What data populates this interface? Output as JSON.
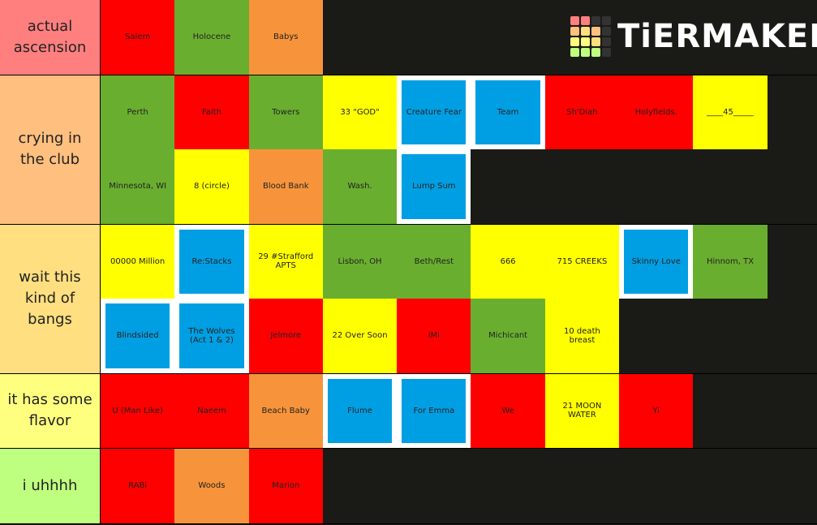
{
  "logo": "TiERMAKER",
  "tiers": [
    {
      "label": "actual ascension",
      "color": "#ff7f7f",
      "items": [
        {
          "text": "Salem",
          "color": "#ff0000"
        },
        {
          "text": "Holocene",
          "color": "#6aae2f"
        },
        {
          "text": "Babys",
          "color": "#f7943b"
        }
      ]
    },
    {
      "label": "crying in the club",
      "color": "#ffbf7f",
      "items": [
        {
          "text": "Perth",
          "color": "#6aae2f"
        },
        {
          "text": "Faith",
          "color": "#ff0000"
        },
        {
          "text": "Towers",
          "color": "#6aae2f"
        },
        {
          "text": "33 \"GOD\"",
          "color": "#ffff00"
        },
        {
          "text": "Creature Fear",
          "color": "#009fe3"
        },
        {
          "text": "Team",
          "color": "#009fe3"
        },
        {
          "text": "Sh'Diah",
          "color": "#ff0000"
        },
        {
          "text": "Holyfields.",
          "color": "#ff0000"
        },
        {
          "text": "____45_____",
          "color": "#ffff00"
        },
        {
          "text": "Minnesota, WI",
          "color": "#6aae2f"
        },
        {
          "text": "8 (circle)",
          "color": "#ffff00"
        },
        {
          "text": "Blood Bank",
          "color": "#f7943b"
        },
        {
          "text": "Wash.",
          "color": "#6aae2f"
        },
        {
          "text": "Lump Sum",
          "color": "#009fe3"
        }
      ]
    },
    {
      "label": "wait this kind of bangs",
      "color": "#ffdf7f",
      "items": [
        {
          "text": "00000 Million",
          "color": "#ffff00"
        },
        {
          "text": "Re:Stacks",
          "color": "#009fe3"
        },
        {
          "text": "29 #Strafford APTS",
          "color": "#ffff00"
        },
        {
          "text": "Lisbon, OH",
          "color": "#6aae2f"
        },
        {
          "text": "Beth/Rest",
          "color": "#6aae2f"
        },
        {
          "text": "666",
          "color": "#ffff00"
        },
        {
          "text": "715 CREEKS",
          "color": "#ffff00"
        },
        {
          "text": "Skinny Love",
          "color": "#009fe3"
        },
        {
          "text": "Hinnom, TX",
          "color": "#6aae2f"
        },
        {
          "text": "Blindsided",
          "color": "#009fe3"
        },
        {
          "text": "The Wolves (Act 1 & 2)",
          "color": "#009fe3"
        },
        {
          "text": "Jelmore",
          "color": "#ff0000"
        },
        {
          "text": "22 Over Soon",
          "color": "#ffff00"
        },
        {
          "text": "iMi",
          "color": "#ff0000"
        },
        {
          "text": "Michicant",
          "color": "#6aae2f"
        },
        {
          "text": "10 death breast",
          "color": "#ffff00"
        }
      ]
    },
    {
      "label": "it has some flavor",
      "color": "#ffff7f",
      "items": [
        {
          "text": "U (Man Like)",
          "color": "#ff0000"
        },
        {
          "text": "Naeem",
          "color": "#ff0000"
        },
        {
          "text": "Beach Baby",
          "color": "#f7943b"
        },
        {
          "text": "Flume",
          "color": "#009fe3"
        },
        {
          "text": "For Emma",
          "color": "#009fe3"
        },
        {
          "text": "We",
          "color": "#ff0000"
        },
        {
          "text": "21 MOON WATER",
          "color": "#ffff00"
        },
        {
          "text": "Yi",
          "color": "#ff0000"
        }
      ]
    },
    {
      "label": "i uhhhh",
      "color": "#bfff7f",
      "items": [
        {
          "text": "RABi",
          "color": "#ff0000"
        },
        {
          "text": "Woods",
          "color": "#f7943b"
        },
        {
          "text": "Marion",
          "color": "#ff0000"
        }
      ]
    }
  ]
}
